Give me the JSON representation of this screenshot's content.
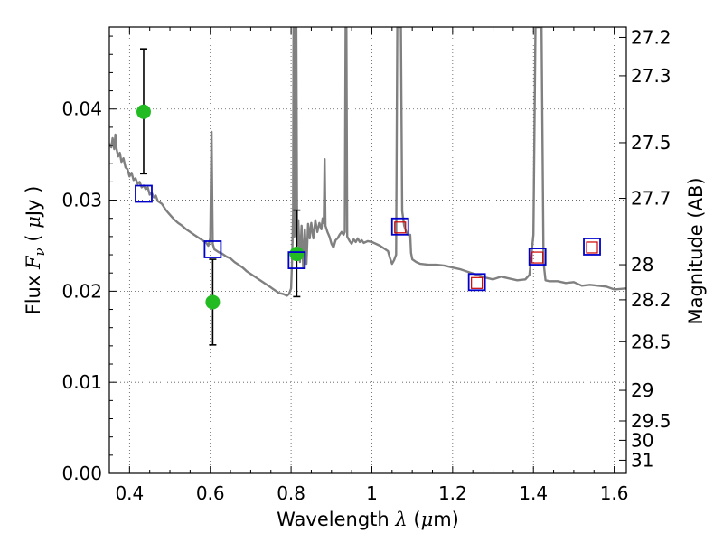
{
  "chart_data": {
    "type": "scatter",
    "xlabel": {
      "pre": "Wavelength  ",
      "sym": "λ",
      "post": " (",
      "unit_sym": "μ",
      "unit": "m)"
    },
    "ylabel": {
      "pre": "Flux  ",
      "sym": "F",
      "sub": "ν",
      "post": "  ( ",
      "unit_sym": "μ",
      "unit": "Jy )"
    },
    "y2label": "Magnitude (AB)",
    "xlim": [
      0.35,
      1.63
    ],
    "ylim": [
      0.0,
      0.049
    ],
    "grid": true,
    "x_ticks": [
      {
        "value": 0.4,
        "label": "0.4"
      },
      {
        "value": 0.6,
        "label": "0.6"
      },
      {
        "value": 0.8,
        "label": "0.8"
      },
      {
        "value": 1.0,
        "label": "1"
      },
      {
        "value": 1.2,
        "label": "1.2"
      },
      {
        "value": 1.4,
        "label": "1.4"
      },
      {
        "value": 1.6,
        "label": "1.6"
      }
    ],
    "y_ticks": [
      {
        "value": 0.0,
        "label": "0.00"
      },
      {
        "value": 0.01,
        "label": "0.01"
      },
      {
        "value": 0.02,
        "label": "0.02"
      },
      {
        "value": 0.03,
        "label": "0.03"
      },
      {
        "value": 0.04,
        "label": "0.04"
      }
    ],
    "y2_ticks": [
      {
        "value": 27.2,
        "label": "27.2"
      },
      {
        "value": 27.3,
        "label": "27.3"
      },
      {
        "value": 27.5,
        "label": "27.5"
      },
      {
        "value": 27.7,
        "label": "27.7"
      },
      {
        "value": 28.0,
        "label": "28"
      },
      {
        "value": 28.2,
        "label": "28.2"
      },
      {
        "value": 28.5,
        "label": "28.5"
      },
      {
        "value": 29.0,
        "label": "29"
      },
      {
        "value": 29.5,
        "label": "29.5"
      },
      {
        "value": 30.0,
        "label": "30"
      },
      {
        "value": 31.0,
        "label": "31"
      }
    ],
    "colors": {
      "model_line": "#808080",
      "observed_points": "#22bb22",
      "errorbars": "#000000",
      "model_photometry": "#0000cc",
      "inner_squares": "#cc0000",
      "grid": "#555555"
    },
    "series": [
      {
        "type": "line",
        "points": [
          [
            0.35,
            0.0362
          ],
          [
            0.355,
            0.0358
          ],
          [
            0.358,
            0.0368
          ],
          [
            0.362,
            0.0356
          ],
          [
            0.365,
            0.0372
          ],
          [
            0.368,
            0.0356
          ],
          [
            0.372,
            0.0348
          ],
          [
            0.376,
            0.0352
          ],
          [
            0.38,
            0.0342
          ],
          [
            0.385,
            0.0346
          ],
          [
            0.39,
            0.0336
          ],
          [
            0.395,
            0.0334
          ],
          [
            0.4,
            0.0326
          ],
          [
            0.405,
            0.033
          ],
          [
            0.41,
            0.0322
          ],
          [
            0.415,
            0.0324
          ],
          [
            0.42,
            0.0318
          ],
          [
            0.425,
            0.032
          ],
          [
            0.43,
            0.0314
          ],
          [
            0.435,
            0.0316
          ],
          [
            0.44,
            0.0312
          ],
          [
            0.445,
            0.0314
          ],
          [
            0.45,
            0.0306
          ],
          [
            0.455,
            0.0308
          ],
          [
            0.46,
            0.0303
          ],
          [
            0.465,
            0.0305
          ],
          [
            0.47,
            0.0299
          ],
          [
            0.48,
            0.0296
          ],
          [
            0.49,
            0.0289
          ],
          [
            0.5,
            0.0284
          ],
          [
            0.51,
            0.0279
          ],
          [
            0.52,
            0.0275
          ],
          [
            0.53,
            0.0272
          ],
          [
            0.54,
            0.0268
          ],
          [
            0.55,
            0.0265
          ],
          [
            0.56,
            0.0262
          ],
          [
            0.57,
            0.0259
          ],
          [
            0.58,
            0.0256
          ],
          [
            0.59,
            0.0253
          ],
          [
            0.595,
            0.025
          ],
          [
            0.6,
            0.0258
          ],
          [
            0.603,
            0.0375
          ],
          [
            0.606,
            0.0252
          ],
          [
            0.61,
            0.0246
          ],
          [
            0.62,
            0.0243
          ],
          [
            0.63,
            0.0241
          ],
          [
            0.64,
            0.0238
          ],
          [
            0.65,
            0.0236
          ],
          [
            0.66,
            0.0232
          ],
          [
            0.67,
            0.0229
          ],
          [
            0.68,
            0.0226
          ],
          [
            0.69,
            0.0222
          ],
          [
            0.7,
            0.0219
          ],
          [
            0.71,
            0.0216
          ],
          [
            0.72,
            0.0213
          ],
          [
            0.73,
            0.021
          ],
          [
            0.74,
            0.0207
          ],
          [
            0.75,
            0.0204
          ],
          [
            0.76,
            0.0201
          ],
          [
            0.77,
            0.0198
          ],
          [
            0.78,
            0.0197
          ],
          [
            0.79,
            0.0195
          ],
          [
            0.795,
            0.0197
          ],
          [
            0.8,
            0.0203
          ],
          [
            0.803,
            0.024
          ],
          [
            0.805,
            0.0285
          ],
          [
            0.806,
            0.049
          ],
          [
            0.807,
            0.049
          ],
          [
            0.808,
            0.026
          ],
          [
            0.81,
            0.0295
          ],
          [
            0.812,
            0.049
          ],
          [
            0.813,
            0.049
          ],
          [
            0.815,
            0.025
          ],
          [
            0.818,
            0.0278
          ],
          [
            0.822,
            0.0232
          ],
          [
            0.826,
            0.0272
          ],
          [
            0.83,
            0.0226
          ],
          [
            0.834,
            0.0268
          ],
          [
            0.838,
            0.023
          ],
          [
            0.842,
            0.0274
          ],
          [
            0.846,
            0.0258
          ],
          [
            0.85,
            0.0275
          ],
          [
            0.855,
            0.0258
          ],
          [
            0.86,
            0.0278
          ],
          [
            0.865,
            0.0265
          ],
          [
            0.87,
            0.0275
          ],
          [
            0.875,
            0.0268
          ],
          [
            0.878,
            0.028
          ],
          [
            0.881,
            0.0275
          ],
          [
            0.883,
            0.0345
          ],
          [
            0.885,
            0.0272
          ],
          [
            0.89,
            0.0265
          ],
          [
            0.895,
            0.026
          ],
          [
            0.9,
            0.0252
          ],
          [
            0.905,
            0.0248
          ],
          [
            0.91,
            0.0256
          ],
          [
            0.915,
            0.0258
          ],
          [
            0.92,
            0.0262
          ],
          [
            0.925,
            0.0265
          ],
          [
            0.93,
            0.0262
          ],
          [
            0.933,
            0.0265
          ],
          [
            0.935,
            0.049
          ],
          [
            0.937,
            0.049
          ],
          [
            0.939,
            0.026
          ],
          [
            0.945,
            0.0255
          ],
          [
            0.95,
            0.0252
          ],
          [
            0.955,
            0.0257
          ],
          [
            0.96,
            0.0254
          ],
          [
            0.965,
            0.0258
          ],
          [
            0.97,
            0.0254
          ],
          [
            0.975,
            0.0256
          ],
          [
            0.98,
            0.0253
          ],
          [
            0.99,
            0.0255
          ],
          [
            1.0,
            0.0254
          ],
          [
            1.01,
            0.0252
          ],
          [
            1.02,
            0.025
          ],
          [
            1.03,
            0.0247
          ],
          [
            1.04,
            0.0244
          ],
          [
            1.045,
            0.0236
          ],
          [
            1.05,
            0.023
          ],
          [
            1.055,
            0.0234
          ],
          [
            1.06,
            0.024
          ],
          [
            1.063,
            0.049
          ],
          [
            1.072,
            0.049
          ],
          [
            1.075,
            0.0288
          ],
          [
            1.08,
            0.0272
          ],
          [
            1.085,
            0.0265
          ],
          [
            1.09,
            0.0262
          ],
          [
            1.095,
            0.0262
          ],
          [
            1.097,
            0.0242
          ],
          [
            1.1,
            0.0235
          ],
          [
            1.11,
            0.0232
          ],
          [
            1.12,
            0.023
          ],
          [
            1.14,
            0.0229
          ],
          [
            1.16,
            0.0229
          ],
          [
            1.18,
            0.0228
          ],
          [
            1.2,
            0.0226
          ],
          [
            1.22,
            0.0224
          ],
          [
            1.24,
            0.0221
          ],
          [
            1.26,
            0.0218
          ],
          [
            1.28,
            0.0215
          ],
          [
            1.3,
            0.0213
          ],
          [
            1.32,
            0.0216
          ],
          [
            1.34,
            0.0214
          ],
          [
            1.36,
            0.0212
          ],
          [
            1.38,
            0.0213
          ],
          [
            1.39,
            0.0218
          ],
          [
            1.4,
            0.0262
          ],
          [
            1.405,
            0.049
          ],
          [
            1.42,
            0.049
          ],
          [
            1.425,
            0.0232
          ],
          [
            1.43,
            0.0212
          ],
          [
            1.44,
            0.0211
          ],
          [
            1.46,
            0.0211
          ],
          [
            1.48,
            0.0209
          ],
          [
            1.5,
            0.021
          ],
          [
            1.52,
            0.0206
          ],
          [
            1.54,
            0.0207
          ],
          [
            1.56,
            0.0206
          ],
          [
            1.58,
            0.0205
          ],
          [
            1.6,
            0.0202
          ],
          [
            1.63,
            0.0203
          ]
        ]
      },
      {
        "type": "scatter_errorbar",
        "points": [
          {
            "x": 0.435,
            "y": 0.0397,
            "yerr_low": 0.0329,
            "yerr_high": 0.0466
          },
          {
            "x": 0.606,
            "y": 0.0188,
            "yerr_low": 0.0141,
            "yerr_high": 0.0235
          },
          {
            "x": 0.814,
            "y": 0.0241,
            "yerr_low": 0.0194,
            "yerr_high": 0.0289
          }
        ]
      },
      {
        "type": "squares",
        "points": [
          {
            "x": 0.435,
            "y": 0.0307
          },
          {
            "x": 0.606,
            "y": 0.0246
          },
          {
            "x": 0.814,
            "y": 0.0234
          },
          {
            "x": 1.07,
            "y": 0.0271
          },
          {
            "x": 1.26,
            "y": 0.021
          },
          {
            "x": 1.41,
            "y": 0.0238
          },
          {
            "x": 1.545,
            "y": 0.0249
          }
        ]
      },
      {
        "type": "inner_squares",
        "points": [
          {
            "x": 1.07,
            "y": 0.027
          },
          {
            "x": 1.26,
            "y": 0.0209
          },
          {
            "x": 1.41,
            "y": 0.0237
          },
          {
            "x": 1.545,
            "y": 0.0248
          }
        ]
      }
    ]
  }
}
